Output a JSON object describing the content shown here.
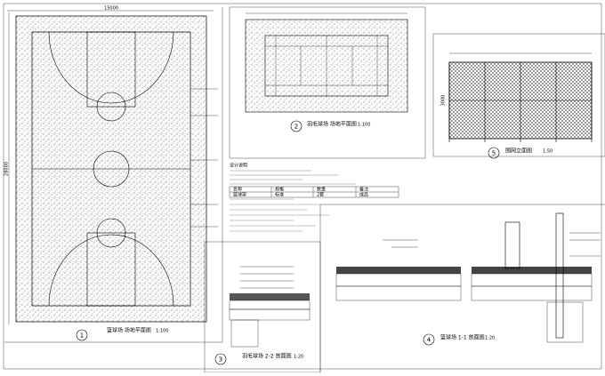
{
  "panels": [
    {
      "number": "1",
      "caption": "篮球场 场地平面图",
      "scale": "1:100"
    },
    {
      "number": "2",
      "caption": "羽毛球场 场地平面图",
      "scale": "1:100"
    },
    {
      "number": "3",
      "caption": "羽毛球场 2-2 剖面图",
      "scale": "1:20"
    },
    {
      "number": "4",
      "caption": "篮球场 1-1 剖面图",
      "scale": "1:20"
    },
    {
      "number": "5",
      "caption": "围网立面图",
      "scale": "1:50"
    }
  ],
  "notes": {
    "title": "设计说明",
    "table": {
      "header": [
        "名称",
        "规格",
        "数量",
        "备注"
      ],
      "rows": [
        [
          "篮球架",
          "标准",
          "2套",
          "成品"
        ]
      ]
    }
  },
  "dimensions": {
    "court_width": "15000",
    "court_length": "28000",
    "fence_height": "3000"
  }
}
